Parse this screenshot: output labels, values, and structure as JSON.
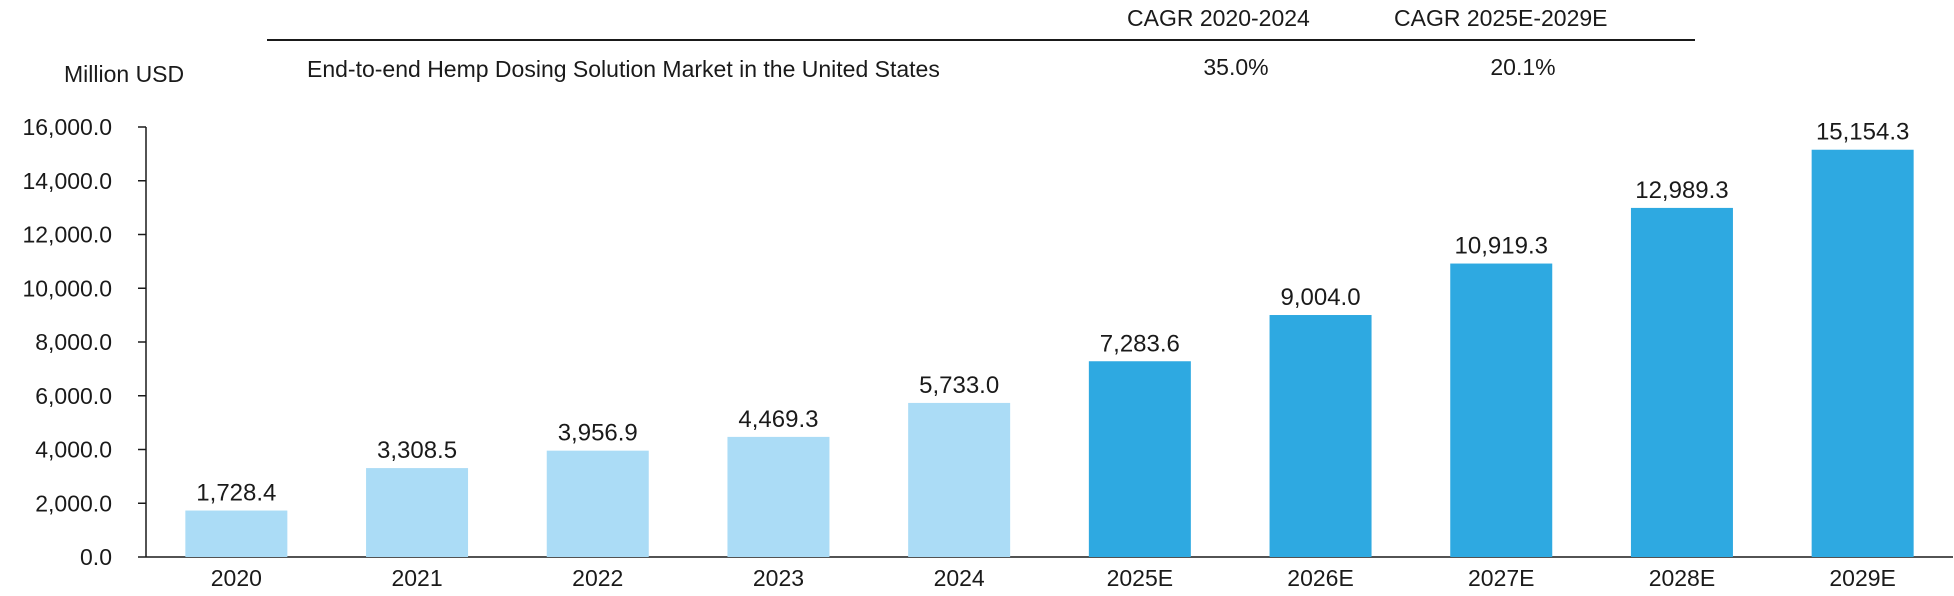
{
  "chart_data": {
    "type": "bar",
    "ylabel": "Million USD",
    "categories": [
      "2020",
      "2021",
      "2022",
      "2023",
      "2024",
      "2025E",
      "2026E",
      "2027E",
      "2028E",
      "2029E"
    ],
    "values": [
      1728.4,
      3308.5,
      3956.9,
      4469.3,
      5733.0,
      7283.6,
      9004.0,
      10919.3,
      12989.3,
      15154.3
    ],
    "value_labels": [
      "1,728.4",
      "3,308.5",
      "3,956.9",
      "4,469.3",
      "5,733.0",
      "7,283.6",
      "9,004.0",
      "10,919.3",
      "12,989.3",
      "15,154.3"
    ],
    "yticks": [
      "0.0",
      "2,000.0",
      "4,000.0",
      "6,000.0",
      "8,000.0",
      "10,000.0",
      "12,000.0",
      "14,000.0",
      "16,000.0"
    ],
    "ylim": [
      0,
      16000
    ],
    "grid": false,
    "historical_color": "#abdcf6",
    "forecast_color": "#2ea9e1",
    "forecast_start_index": 5,
    "cagr_table": {
      "headers": [
        "CAGR 2020-2024",
        "CAGR 2025E-2029E"
      ],
      "row_label": "End-to-end Hemp Dosing Solution Market in the United States",
      "values": [
        "35.0%",
        "20.1%"
      ]
    }
  }
}
